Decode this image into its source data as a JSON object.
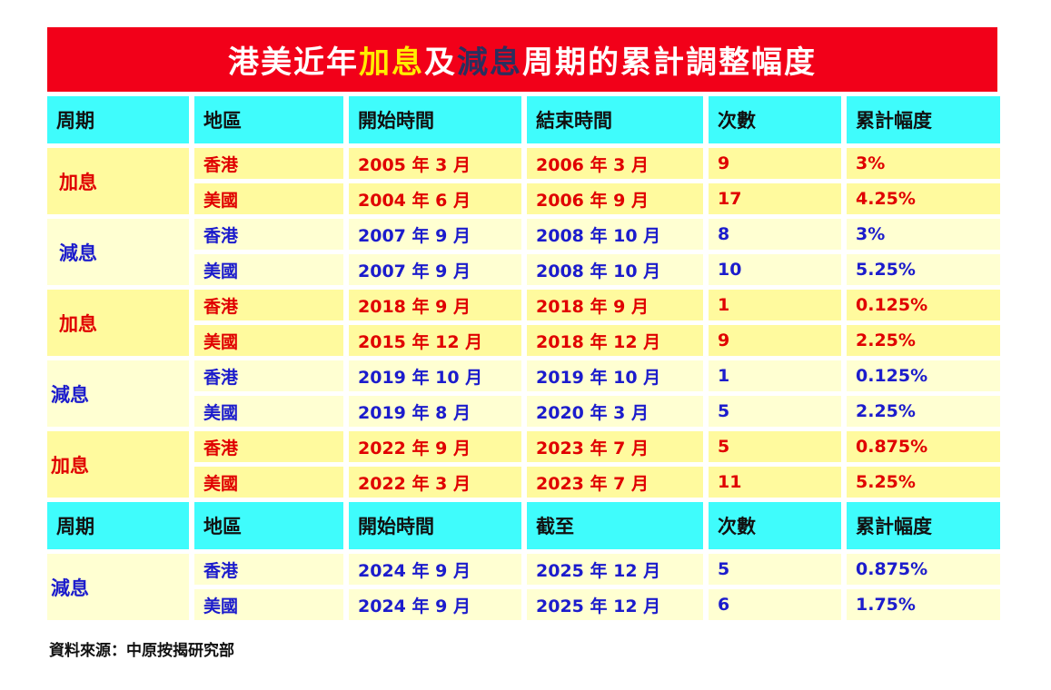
{
  "title": {
    "prefix": "港美近年",
    "hike": "加息",
    "and": "及",
    "cut": "減息",
    "suffix": "周期的累計調整幅度"
  },
  "colors": {
    "title_bg": "#f20019",
    "header_bg": "#3ffcfc",
    "hike_bg": "#fffa9e",
    "cut_bg": "#ffffd2",
    "hike_text": "#e00000",
    "cut_text": "#1c1ccc"
  },
  "header1": [
    "周期",
    "地區",
    "開始時間",
    "結束時間",
    "次數",
    "累計幅度"
  ],
  "groups1": [
    {
      "type": "hike",
      "period": "加息",
      "rows": [
        [
          "香港",
          "2005 年 3 月",
          "2006 年 3 月",
          "9",
          "3%"
        ],
        [
          "美國",
          "2004 年 6 月",
          "2006 年 9 月",
          "17",
          "4.25%"
        ]
      ]
    },
    {
      "type": "cut",
      "period": "減息",
      "rows": [
        [
          "香港",
          "2007 年 9 月",
          "2008 年 10 月",
          "8",
          "3%"
        ],
        [
          "美國",
          "2007 年 9 月",
          "2008 年 10 月",
          "10",
          "5.25%"
        ]
      ]
    },
    {
      "type": "hike",
      "period": "加息",
      "rows": [
        [
          "香港",
          "2018 年 9 月",
          "2018 年 9 月",
          "1",
          "0.125%"
        ],
        [
          "美國",
          "2015 年 12 月",
          "2018 年 12 月",
          "9",
          "2.25%"
        ]
      ]
    },
    {
      "type": "cut",
      "period": "減息",
      "rows": [
        [
          "香港",
          "2019 年 10 月",
          "2019 年 10 月",
          "1",
          "0.125%"
        ],
        [
          "美國",
          "2019 年 8 月",
          "2020 年 3 月",
          "5",
          "2.25%"
        ]
      ]
    },
    {
      "type": "hike",
      "period": "加息",
      "rows": [
        [
          "香港",
          "2022 年 9 月",
          "2023 年 7 月",
          "5",
          "0.875%"
        ],
        [
          "美國",
          "2022 年 3 月",
          "2023 年 7 月",
          "11",
          "5.25%"
        ]
      ]
    }
  ],
  "header2": [
    "周期",
    "地區",
    "開始時間",
    "截至",
    "次數",
    "累計幅度"
  ],
  "groups2": [
    {
      "type": "cut",
      "period": "減息",
      "rows": [
        [
          "香港",
          "2024 年 9 月",
          "2025 年 12 月",
          "5",
          "0.875%"
        ],
        [
          "美國",
          "2024 年 9 月",
          "2025 年 12 月",
          "6",
          "1.75%"
        ]
      ]
    }
  ],
  "source": "資料來源：中原按揭研究部"
}
